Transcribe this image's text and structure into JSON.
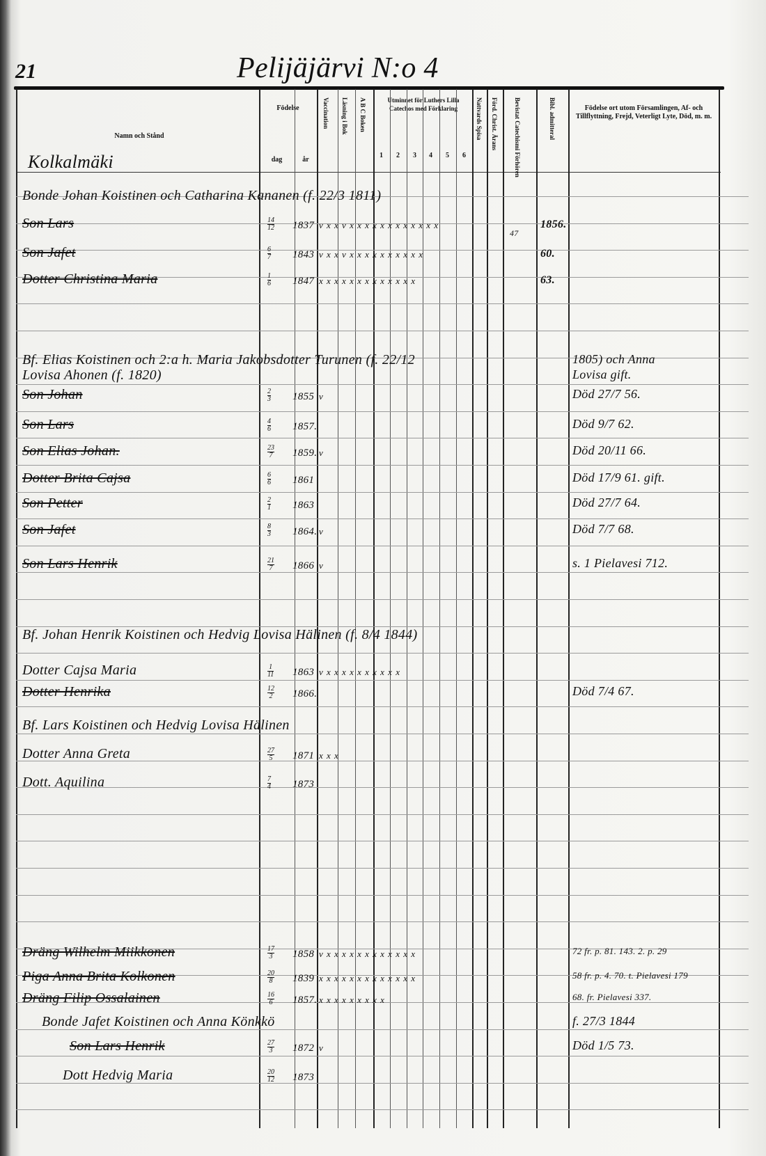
{
  "page_number": "21",
  "title": "Pelijäjärvi N:o 4",
  "headers": {
    "name": "Namn och Stånd",
    "birth": "Födelse",
    "day": "dag",
    "year": "år",
    "vaccination": "Vaccination",
    "reading": "Läsning i Bok",
    "abc": "A B C Boken",
    "catechism": "Utminnet för Luthers Lilla Catechos med Förklaring",
    "catechism_cols": [
      "1",
      "2",
      "3",
      "4",
      "5",
      "6"
    ],
    "communion": "Nattvards Spisa",
    "christendom": "Förd. Christ. Ärans",
    "exams": "Bevistat Catechismi Förhören",
    "admitted": "Bibl. admitteral",
    "remarks": "Födelse ort utom Församlingen, Af- och Tillflyttning, Frejd, Veterligt Lyte, Död, m. m."
  },
  "village": "Kolkalmäki",
  "entries": [
    {
      "name": "Bonde Johan Koistinen och Catharina Kananen (f. 22/3 1811)",
      "struck": false,
      "head": true
    },
    {
      "name": "Son Lars",
      "day": "14",
      "month": "12",
      "year": "1837",
      "marks": "v x x v x x x x x x x x x x x x",
      "exam": "47",
      "admitted": "1856.",
      "struck": true
    },
    {
      "name": "Son Jafet",
      "day": "6",
      "month": "7",
      "year": "1843",
      "marks": "v x x v x x x x x x x x x x",
      "admitted": "60.",
      "struck": true
    },
    {
      "name": "Dotter Christina Maria",
      "day": "1",
      "month": "6",
      "year": "1847",
      "marks": "x x x x x x x x x x x x x",
      "admitted": "63.",
      "struck": true
    },
    {
      "name": "Bf. Elias Koistinen och 2:a h. Maria Jakobsdotter Turunen (f. 22/12",
      "remarks": "1805) och Anna",
      "struck": false,
      "head": true
    },
    {
      "name": "Lovisa Ahonen (f. 1820)",
      "remarks": "Lovisa gift.",
      "struck": false,
      "head": true
    },
    {
      "name": "Son Johan",
      "day": "2",
      "month": "3",
      "year": "1855",
      "marks": "v",
      "remarks": "Död 27/7 56.",
      "struck": true
    },
    {
      "name": "Son Lars",
      "day": "4",
      "month": "6",
      "year": "1857.",
      "remarks": "Död 9/7 62.",
      "struck": true
    },
    {
      "name": "Son Elias Johan.",
      "day": "23",
      "month": "7",
      "year": "1859.",
      "marks": "v",
      "remarks": "Död 20/11 66.",
      "struck": true
    },
    {
      "name": "Dotter Brita Cajsa",
      "day": "6",
      "month": "6",
      "year": "1861",
      "remarks": "Död 17/9 61. gift.",
      "struck": true
    },
    {
      "name": "Son Petter",
      "day": "2",
      "month": "1",
      "year": "1863",
      "remarks": "Död 27/7 64.",
      "struck": true
    },
    {
      "name": "Son Jafet",
      "day": "8",
      "month": "3",
      "year": "1864.",
      "marks": "v",
      "remarks": "Död 7/7 68.",
      "struck": true
    },
    {
      "name": "Son Lars Henrik",
      "day": "21",
      "month": "7",
      "year": "1866",
      "marks": "v",
      "remarks": "s. 1 Pielavesi 712.",
      "struck": true
    },
    {
      "name": "Bf. Johan Henrik Koistinen och Hedvig Lovisa Hälinen (f. 8/4 1844)",
      "struck": false,
      "head": true
    },
    {
      "name": "Dotter Cajsa Maria",
      "day": "1",
      "month": "11",
      "year": "1863",
      "marks": "v x x x x x x x x x x",
      "struck": false
    },
    {
      "name": "Dotter Henrika",
      "day": "12",
      "month": "2",
      "year": "1866.",
      "remarks": "Död 7/4 67.",
      "struck": true
    },
    {
      "name": "Bf. Lars Koistinen och Hedvig Lovisa Hälinen",
      "struck": false,
      "head": true
    },
    {
      "name": "Dotter Anna Greta",
      "day": "27",
      "month": "5",
      "year": "1871",
      "marks": "x x x",
      "struck": false
    },
    {
      "name": "Dott. Aquilina",
      "day": "7",
      "month": "4",
      "year": "1873",
      "struck": false
    },
    {
      "name": "Dräng Wilhelm Miikkonen",
      "day": "17",
      "month": "3",
      "year": "1858",
      "marks": "v x x x x x x x x x x x x",
      "remarks": "72 fr. p. 81. 143. 2. p. 29",
      "struck": true
    },
    {
      "name": "Piga Anna Brita Kolkonen",
      "day": "20",
      "month": "8",
      "year": "1839",
      "marks": "x x x x x x x x x x x x x",
      "remarks": "58 fr. p. 4. 70. t. Pielavesi 179",
      "struck": true
    },
    {
      "name": "Dräng Filip Ossalainen",
      "day": "16",
      "month": "6",
      "year": "1857.",
      "marks": "x x x x x x x x x",
      "remarks": "68. fr. Pielavesi 337.",
      "struck": true
    },
    {
      "name": "Bonde Jafet Koistinen och Anna Könkkö",
      "remarks": "f. 27/3 1844",
      "struck": false,
      "head": true
    },
    {
      "name": "Son Lars Henrik",
      "day": "27",
      "month": "3",
      "year": "1872",
      "marks": "v",
      "remarks": "Död 1/5 73.",
      "struck": true
    },
    {
      "name": "Dott Hedvig Maria",
      "day": "20",
      "month": "12",
      "year": "1873",
      "struck": false
    }
  ]
}
